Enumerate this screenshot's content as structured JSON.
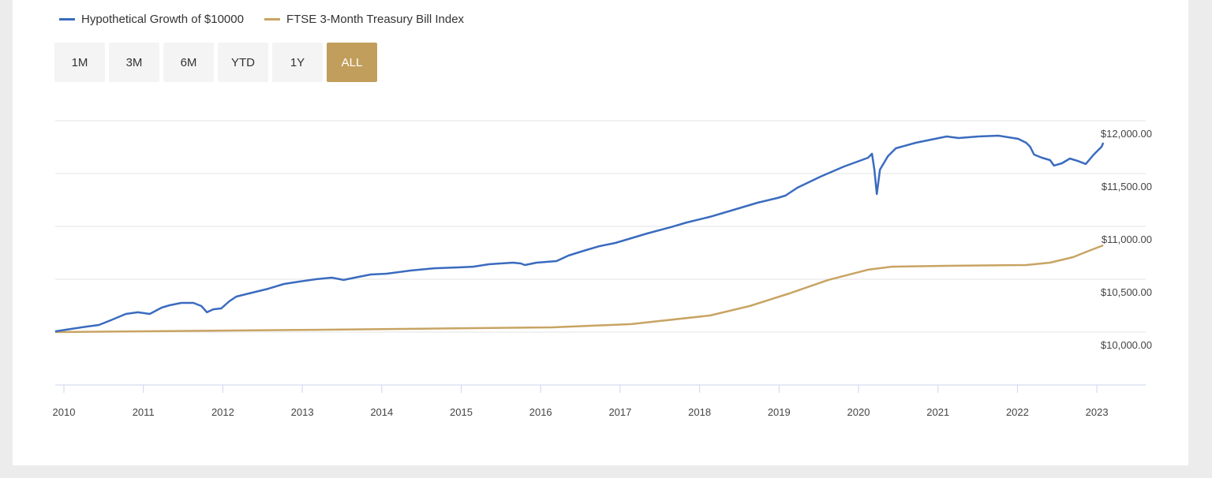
{
  "legend": [
    {
      "label": "Hypothetical Growth of $10000",
      "color": "#3a6bbf"
    },
    {
      "label": "FTSE 3-Month Treasury Bill Index",
      "color": "#c8a463"
    }
  ],
  "range_buttons": [
    {
      "label": "1M",
      "active": false
    },
    {
      "label": "3M",
      "active": false
    },
    {
      "label": "6M",
      "active": false
    },
    {
      "label": "YTD",
      "active": false
    },
    {
      "label": "1Y",
      "active": false
    },
    {
      "label": "ALL",
      "active": true
    }
  ],
  "chart_data": {
    "type": "line",
    "title": "",
    "xlabel": "",
    "ylabel": "",
    "xlim": [
      2009.89,
      2023.6
    ],
    "ylim": [
      9500,
      12000
    ],
    "grid": true,
    "legend_position": "top-left",
    "x_ticks": [
      "2010",
      "2011",
      "2012",
      "2013",
      "2014",
      "2015",
      "2016",
      "2017",
      "2018",
      "2019",
      "2020",
      "2021",
      "2022",
      "2023"
    ],
    "y_ticks": [
      {
        "value": 10000,
        "label": "$10,000.00"
      },
      {
        "value": 10500,
        "label": "$10,500.00"
      },
      {
        "value": 11000,
        "label": "$11,000.00"
      },
      {
        "value": 11500,
        "label": "$11,500.00"
      },
      {
        "value": 12000,
        "label": "$12,000.00"
      }
    ],
    "series": [
      {
        "name": "Hypothetical Growth of $10000",
        "color": "#3a6bbf",
        "points": [
          [
            2009.89,
            10007
          ],
          [
            2010.09,
            10030
          ],
          [
            2010.29,
            10052
          ],
          [
            2010.44,
            10067
          ],
          [
            2010.59,
            10112
          ],
          [
            2010.78,
            10172
          ],
          [
            2010.93,
            10187
          ],
          [
            2011.08,
            10172
          ],
          [
            2011.23,
            10231
          ],
          [
            2011.33,
            10254
          ],
          [
            2011.48,
            10276
          ],
          [
            2011.63,
            10276
          ],
          [
            2011.73,
            10246
          ],
          [
            2011.8,
            10187
          ],
          [
            2011.88,
            10216
          ],
          [
            2011.98,
            10224
          ],
          [
            2012.08,
            10291
          ],
          [
            2012.17,
            10336
          ],
          [
            2012.37,
            10373
          ],
          [
            2012.57,
            10410
          ],
          [
            2012.77,
            10455
          ],
          [
            2012.97,
            10478
          ],
          [
            2013.17,
            10500
          ],
          [
            2013.37,
            10515
          ],
          [
            2013.52,
            10493
          ],
          [
            2013.66,
            10515
          ],
          [
            2013.86,
            10545
          ],
          [
            2014.06,
            10552
          ],
          [
            2014.36,
            10582
          ],
          [
            2014.66,
            10604
          ],
          [
            2014.96,
            10612
          ],
          [
            2015.15,
            10619
          ],
          [
            2015.35,
            10642
          ],
          [
            2015.65,
            10657
          ],
          [
            2015.75,
            10649
          ],
          [
            2015.8,
            10634
          ],
          [
            2015.95,
            10657
          ],
          [
            2016.2,
            10672
          ],
          [
            2016.35,
            10724
          ],
          [
            2016.54,
            10769
          ],
          [
            2016.74,
            10813
          ],
          [
            2016.94,
            10843
          ],
          [
            2017.14,
            10888
          ],
          [
            2017.34,
            10933
          ],
          [
            2017.64,
            10993
          ],
          [
            2017.84,
            11037
          ],
          [
            2018.13,
            11090
          ],
          [
            2018.43,
            11157
          ],
          [
            2018.73,
            11224
          ],
          [
            2018.98,
            11269
          ],
          [
            2019.08,
            11291
          ],
          [
            2019.23,
            11366
          ],
          [
            2019.52,
            11470
          ],
          [
            2019.82,
            11567
          ],
          [
            2020.12,
            11649
          ],
          [
            2020.17,
            11687
          ],
          [
            2020.2,
            11537
          ],
          [
            2020.23,
            11306
          ],
          [
            2020.27,
            11537
          ],
          [
            2020.37,
            11664
          ],
          [
            2020.47,
            11739
          ],
          [
            2020.72,
            11791
          ],
          [
            2021.11,
            11851
          ],
          [
            2021.26,
            11836
          ],
          [
            2021.51,
            11851
          ],
          [
            2021.76,
            11858
          ],
          [
            2022.01,
            11828
          ],
          [
            2022.11,
            11791
          ],
          [
            2022.16,
            11754
          ],
          [
            2022.21,
            11679
          ],
          [
            2022.31,
            11649
          ],
          [
            2022.41,
            11627
          ],
          [
            2022.46,
            11575
          ],
          [
            2022.56,
            11597
          ],
          [
            2022.66,
            11642
          ],
          [
            2022.76,
            11619
          ],
          [
            2022.86,
            11590
          ],
          [
            2022.96,
            11679
          ],
          [
            2023.06,
            11754
          ],
          [
            2023.08,
            11791
          ]
        ]
      },
      {
        "name": "FTSE 3-Month Treasury Bill Index",
        "color": "#c8a463",
        "points": [
          [
            2009.89,
            10000
          ],
          [
            2013.17,
            10022
          ],
          [
            2016.15,
            10045
          ],
          [
            2017.14,
            10075
          ],
          [
            2018.13,
            10157
          ],
          [
            2018.63,
            10246
          ],
          [
            2019.13,
            10366
          ],
          [
            2019.62,
            10493
          ],
          [
            2020.12,
            10590
          ],
          [
            2020.42,
            10619
          ],
          [
            2021.11,
            10627
          ],
          [
            2022.11,
            10634
          ],
          [
            2022.41,
            10657
          ],
          [
            2022.7,
            10709
          ],
          [
            2022.9,
            10769
          ],
          [
            2023.08,
            10821
          ]
        ]
      }
    ]
  }
}
